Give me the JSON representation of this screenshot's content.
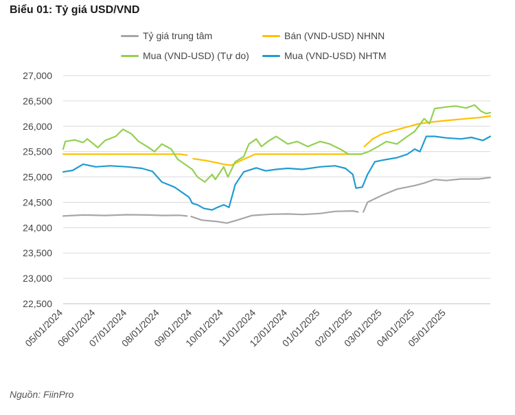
{
  "title": "Biểu 01: Tỷ giá  USD/VND",
  "source": "Nguồn: FiinPro",
  "chart_data": {
    "type": "line",
    "ylim": [
      22500,
      27000
    ],
    "yticks": [
      22500,
      23000,
      23500,
      24000,
      24500,
      25000,
      25500,
      26000,
      26500,
      27000
    ],
    "ytick_labels": [
      "22,500",
      "23,000",
      "23,500",
      "24,000",
      "24,500",
      "25,000",
      "25,500",
      "26,000",
      "26,500",
      "27,000"
    ],
    "xlim": [
      "2024-05-01",
      "2025-06-12"
    ],
    "xtick_labels": [
      "05/01/2024",
      "06/01/2024",
      "07/01/2024",
      "08/01/2024",
      "09/01/2024",
      "10/01/2024",
      "11/01/2024",
      "12/01/2024",
      "01/01/2025",
      "02/01/2025",
      "03/01/2025",
      "04/01/2025",
      "05/01/2025"
    ],
    "xtick_dates": [
      "2024-05-01",
      "2024-06-01",
      "2024-07-01",
      "2024-08-01",
      "2024-09-01",
      "2024-10-01",
      "2024-11-01",
      "2024-12-01",
      "2025-01-01",
      "2025-02-01",
      "2025-03-01",
      "2025-04-01",
      "2025-05-01"
    ],
    "grid": "horizontal",
    "legend_position": "top",
    "series": [
      {
        "name": "Tỷ giá trung tâm",
        "color": "#a6a6a6",
        "points": [
          [
            "2024-05-01",
            24230
          ],
          [
            "2024-05-20",
            24250
          ],
          [
            "2024-06-10",
            24240
          ],
          [
            "2024-07-01",
            24255
          ],
          [
            "2024-07-20",
            24250
          ],
          [
            "2024-08-05",
            24240
          ],
          [
            "2024-08-20",
            24245
          ],
          [
            "2024-08-27",
            24230
          ],
          null,
          [
            "2024-08-31",
            24220
          ],
          [
            "2024-09-10",
            24150
          ],
          [
            "2024-09-25",
            24120
          ],
          [
            "2024-10-04",
            24090
          ],
          [
            "2024-10-14",
            24150
          ],
          [
            "2024-10-28",
            24240
          ],
          [
            "2024-11-15",
            24265
          ],
          [
            "2024-12-01",
            24270
          ],
          [
            "2024-12-15",
            24260
          ],
          [
            "2025-01-01",
            24280
          ],
          [
            "2025-01-15",
            24320
          ],
          [
            "2025-02-01",
            24330
          ],
          [
            "2025-02-06",
            24310
          ],
          null,
          [
            "2025-02-11",
            24310
          ],
          [
            "2025-02-15",
            24500
          ],
          [
            "2025-03-01",
            24640
          ],
          [
            "2025-03-15",
            24760
          ],
          [
            "2025-04-01",
            24830
          ],
          [
            "2025-04-10",
            24880
          ],
          [
            "2025-04-20",
            24950
          ],
          [
            "2025-05-01",
            24930
          ],
          [
            "2025-05-15",
            24960
          ],
          [
            "2025-06-01",
            24960
          ],
          [
            "2025-06-12",
            24990
          ]
        ]
      },
      {
        "name": "Bán (VND-USD) NHNN",
        "color": "#ffc000",
        "points": [
          [
            "2024-05-01",
            25450
          ],
          [
            "2024-06-01",
            25450
          ],
          [
            "2024-07-01",
            25450
          ],
          [
            "2024-08-01",
            25450
          ],
          [
            "2024-08-20",
            25450
          ],
          [
            "2024-08-27",
            25430
          ],
          null,
          [
            "2024-09-02",
            25360
          ],
          [
            "2024-09-15",
            25320
          ],
          [
            "2024-10-01",
            25250
          ],
          [
            "2024-10-08",
            25230
          ],
          [
            "2024-10-20",
            25350
          ],
          [
            "2024-10-31",
            25450
          ],
          [
            "2024-12-01",
            25450
          ],
          [
            "2025-01-01",
            25450
          ],
          [
            "2025-02-01",
            25450
          ],
          [
            "2025-02-09",
            25450
          ],
          null,
          [
            "2025-02-12",
            25600
          ],
          [
            "2025-02-20",
            25750
          ],
          [
            "2025-03-01",
            25850
          ],
          [
            "2025-03-20",
            25960
          ],
          [
            "2025-04-05",
            26050
          ],
          [
            "2025-04-20",
            26090
          ],
          [
            "2025-05-05",
            26120
          ],
          [
            "2025-05-20",
            26150
          ],
          [
            "2025-06-01",
            26170
          ],
          [
            "2025-06-12",
            26200
          ]
        ]
      },
      {
        "name": "Mua (VND-USD) (Tự do)",
        "color": "#92d050",
        "points": [
          [
            "2024-05-01",
            25550
          ],
          [
            "2024-05-03",
            25700
          ],
          [
            "2024-05-12",
            25730
          ],
          [
            "2024-05-20",
            25680
          ],
          [
            "2024-05-24",
            25750
          ],
          [
            "2024-05-30",
            25650
          ],
          [
            "2024-06-03",
            25580
          ],
          [
            "2024-06-10",
            25720
          ],
          [
            "2024-06-20",
            25800
          ],
          [
            "2024-06-27",
            25940
          ],
          [
            "2024-07-05",
            25850
          ],
          [
            "2024-07-12",
            25700
          ],
          [
            "2024-07-20",
            25600
          ],
          [
            "2024-07-27",
            25500
          ],
          [
            "2024-08-03",
            25650
          ],
          [
            "2024-08-12",
            25550
          ],
          [
            "2024-08-18",
            25350
          ],
          [
            "2024-08-25",
            25250
          ],
          [
            "2024-09-01",
            25150
          ],
          [
            "2024-09-06",
            25000
          ],
          [
            "2024-09-13",
            24900
          ],
          [
            "2024-09-20",
            25050
          ],
          [
            "2024-09-23",
            24950
          ],
          [
            "2024-10-01",
            25200
          ],
          [
            "2024-10-05",
            25000
          ],
          [
            "2024-10-12",
            25300
          ],
          [
            "2024-10-20",
            25400
          ],
          [
            "2024-10-25",
            25650
          ],
          [
            "2024-11-01",
            25750
          ],
          [
            "2024-11-06",
            25600
          ],
          [
            "2024-11-12",
            25700
          ],
          [
            "2024-11-20",
            25800
          ],
          [
            "2024-12-01",
            25650
          ],
          [
            "2024-12-10",
            25700
          ],
          [
            "2024-12-20",
            25600
          ],
          [
            "2025-01-01",
            25700
          ],
          [
            "2025-01-10",
            25650
          ],
          [
            "2025-01-20",
            25550
          ],
          [
            "2025-01-28",
            25450
          ],
          [
            "2025-02-09",
            25450
          ],
          [
            "2025-02-16",
            25500
          ],
          [
            "2025-02-25",
            25600
          ],
          [
            "2025-03-05",
            25700
          ],
          [
            "2025-03-15",
            25650
          ],
          [
            "2025-03-25",
            25800
          ],
          [
            "2025-04-01",
            25900
          ],
          [
            "2025-04-10",
            26150
          ],
          [
            "2025-04-15",
            26050
          ],
          [
            "2025-04-20",
            26350
          ],
          [
            "2025-05-01",
            26380
          ],
          [
            "2025-05-10",
            26400
          ],
          [
            "2025-05-20",
            26360
          ],
          [
            "2025-05-28",
            26420
          ],
          [
            "2025-06-03",
            26300
          ],
          [
            "2025-06-08",
            26250
          ],
          [
            "2025-06-12",
            26270
          ]
        ]
      },
      {
        "name": "Mua (VND-USD) NHTM",
        "color": "#1f9bd1",
        "points": [
          [
            "2024-05-01",
            25100
          ],
          [
            "2024-05-10",
            25130
          ],
          [
            "2024-05-20",
            25250
          ],
          [
            "2024-06-01",
            25200
          ],
          [
            "2024-06-15",
            25220
          ],
          [
            "2024-07-01",
            25200
          ],
          [
            "2024-07-15",
            25170
          ],
          [
            "2024-07-25",
            25110
          ],
          [
            "2024-08-03",
            24900
          ],
          [
            "2024-08-15",
            24800
          ],
          [
            "2024-08-22",
            24700
          ],
          [
            "2024-08-29",
            24600
          ],
          [
            "2024-09-01",
            24480
          ],
          [
            "2024-09-06",
            24450
          ],
          [
            "2024-09-12",
            24380
          ],
          [
            "2024-09-20",
            24350
          ],
          [
            "2024-09-25",
            24400
          ],
          [
            "2024-10-01",
            24450
          ],
          [
            "2024-10-06",
            24400
          ],
          [
            "2024-10-12",
            24850
          ],
          [
            "2024-10-20",
            25100
          ],
          [
            "2024-11-01",
            25180
          ],
          [
            "2024-11-10",
            25120
          ],
          [
            "2024-11-20",
            25150
          ],
          [
            "2024-12-01",
            25170
          ],
          [
            "2024-12-15",
            25150
          ],
          [
            "2025-01-01",
            25200
          ],
          [
            "2025-01-15",
            25220
          ],
          [
            "2025-01-25",
            25170
          ],
          [
            "2025-02-01",
            25050
          ],
          [
            "2025-02-04",
            24780
          ],
          [
            "2025-02-10",
            24800
          ],
          [
            "2025-02-15",
            25050
          ],
          [
            "2025-02-22",
            25300
          ],
          [
            "2025-03-01",
            25330
          ],
          [
            "2025-03-15",
            25380
          ],
          [
            "2025-03-25",
            25450
          ],
          [
            "2025-04-01",
            25550
          ],
          [
            "2025-04-06",
            25500
          ],
          [
            "2025-04-12",
            25800
          ],
          [
            "2025-04-20",
            25800
          ],
          [
            "2025-05-01",
            25770
          ],
          [
            "2025-05-15",
            25750
          ],
          [
            "2025-05-25",
            25780
          ],
          [
            "2025-06-05",
            25720
          ],
          [
            "2025-06-12",
            25800
          ]
        ]
      }
    ]
  }
}
